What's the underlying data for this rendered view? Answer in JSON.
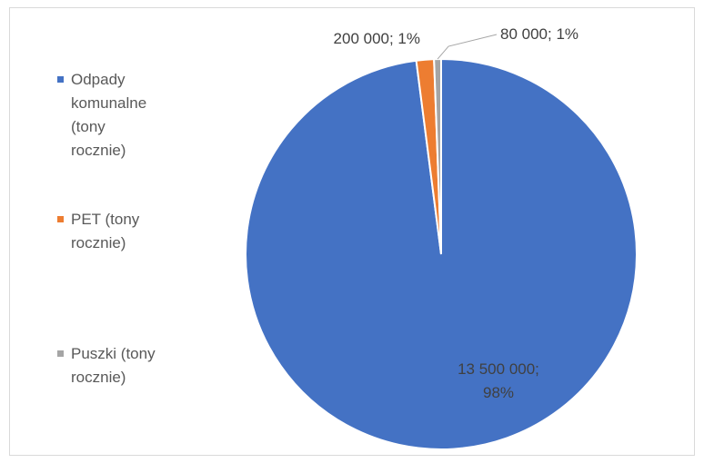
{
  "chart_data": {
    "type": "pie",
    "title": "",
    "categories": [
      "Odpady komunalne (tony rocznie)",
      "PET (tony rocznie)",
      "Puszki (tony rocznie)"
    ],
    "values": [
      13500000,
      200000,
      80000
    ],
    "percent_labels": [
      "98%",
      "1%",
      "1%"
    ],
    "data_labels": [
      [
        "13 500 000;",
        "98%"
      ],
      [
        "200 000; 1%"
      ],
      [
        "80 000; 1%"
      ]
    ],
    "legend": {
      "position": "left",
      "entries": [
        {
          "lines": [
            "Odpady",
            "komunalne",
            "(tony",
            "rocznie)"
          ],
          "color": "#4472C4"
        },
        {
          "lines": [
            "PET (tony",
            "rocznie)"
          ],
          "color": "#ED7D31"
        },
        {
          "lines": [
            "Puszki (tony",
            "rocznie)"
          ],
          "color": "#A5A5A5"
        }
      ]
    },
    "colors": [
      "#4472C4",
      "#ED7D31",
      "#A5A5A5"
    ]
  }
}
